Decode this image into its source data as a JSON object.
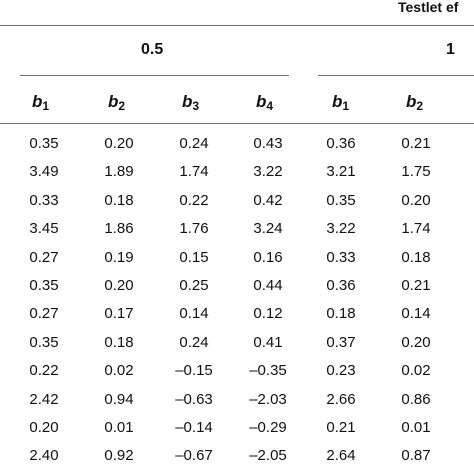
{
  "header": {
    "testlet_partial": "Testlet ef"
  },
  "groups": [
    {
      "label": "0.5"
    },
    {
      "label": "1"
    }
  ],
  "columns": [
    {
      "base": "b",
      "sub": "1"
    },
    {
      "base": "b",
      "sub": "2"
    },
    {
      "base": "b",
      "sub": "3"
    },
    {
      "base": "b",
      "sub": "4"
    },
    {
      "base": "b",
      "sub": "1"
    },
    {
      "base": "b",
      "sub": "2"
    }
  ],
  "rows": [
    [
      "0.35",
      "0.20",
      "0.24",
      "0.43",
      "0.36",
      "0.21"
    ],
    [
      "3.49",
      "1.89",
      "1.74",
      "3.22",
      "3.21",
      "1.75"
    ],
    [
      "0.33",
      "0.18",
      "0.22",
      "0.42",
      "0.35",
      "0.20"
    ],
    [
      "3.45",
      "1.86",
      "1.76",
      "3.24",
      "3.22",
      "1.74"
    ],
    [
      "0.27",
      "0.19",
      "0.15",
      "0.16",
      "0.33",
      "0.18"
    ],
    [
      "0.35",
      "0.20",
      "0.25",
      "0.44",
      "0.36",
      "0.21"
    ],
    [
      "0.27",
      "0.17",
      "0.14",
      "0.12",
      "0.18",
      "0.14"
    ],
    [
      "0.35",
      "0.18",
      "0.24",
      "0.41",
      "0.37",
      "0.20"
    ],
    [
      "0.22",
      "0.02",
      "–0.15",
      "–0.35",
      "0.23",
      "0.02"
    ],
    [
      "2.42",
      "0.94",
      "–0.63",
      "–2.03",
      "2.66",
      "0.86"
    ],
    [
      "0.20",
      "0.01",
      "–0.14",
      "–0.29",
      "0.21",
      "0.01"
    ],
    [
      "2.40",
      "0.92",
      "–0.67",
      "–2.05",
      "2.64",
      "0.87"
    ]
  ]
}
